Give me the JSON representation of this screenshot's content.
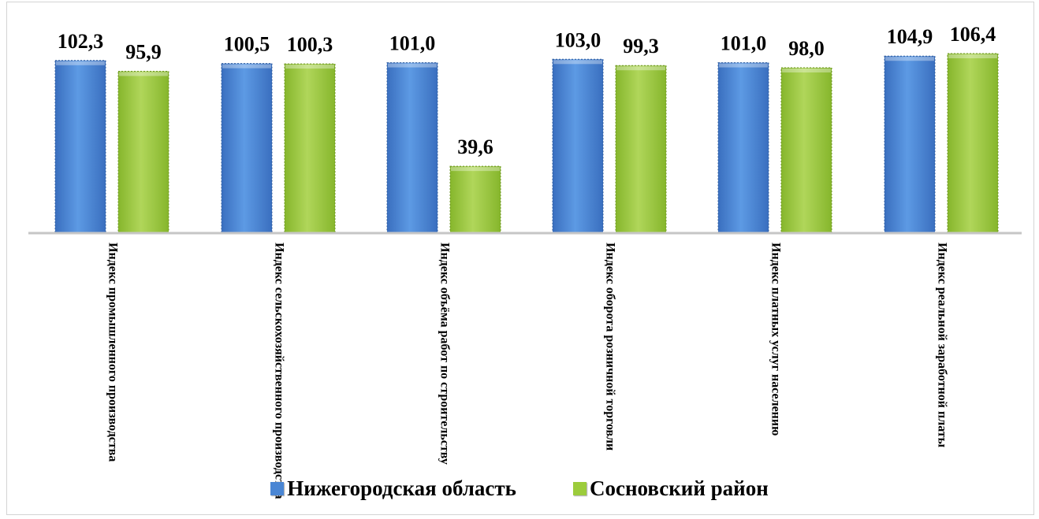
{
  "chart_data": {
    "type": "bar",
    "title": "",
    "xlabel": "",
    "ylabel": "",
    "ylim": [
      0,
      110
    ],
    "grid": false,
    "legend_position": "bottom",
    "categories": [
      "Индекс промышленного производства",
      "Индекс сельскохозяйственного производства",
      "Индекс объёма работ по строительству",
      "Индекс оборота розничной торговли",
      "Индекс платных услуг населению",
      "Индекс реальной заработной платы"
    ],
    "series": [
      {
        "name": "Нижегородская область",
        "color": "#4a86d4",
        "values": [
          102.3,
          100.5,
          101.0,
          103.0,
          101.0,
          104.9
        ],
        "value_labels": [
          "102,3",
          "100,5",
          "101,0",
          "103,0",
          "101,0",
          "104,9"
        ]
      },
      {
        "name": "Сосновский район",
        "color": "#9ccc3c",
        "values": [
          95.9,
          100.3,
          39.6,
          99.3,
          98.0,
          106.4
        ],
        "value_labels": [
          "95,9",
          "100,3",
          "39,6",
          "99,3",
          "98,0",
          "106,4"
        ]
      }
    ]
  },
  "legend": {
    "items": [
      {
        "label": "Нижегородская область",
        "color": "#4a86d4"
      },
      {
        "label": "Сосновский район",
        "color": "#9ccc3c"
      }
    ]
  }
}
